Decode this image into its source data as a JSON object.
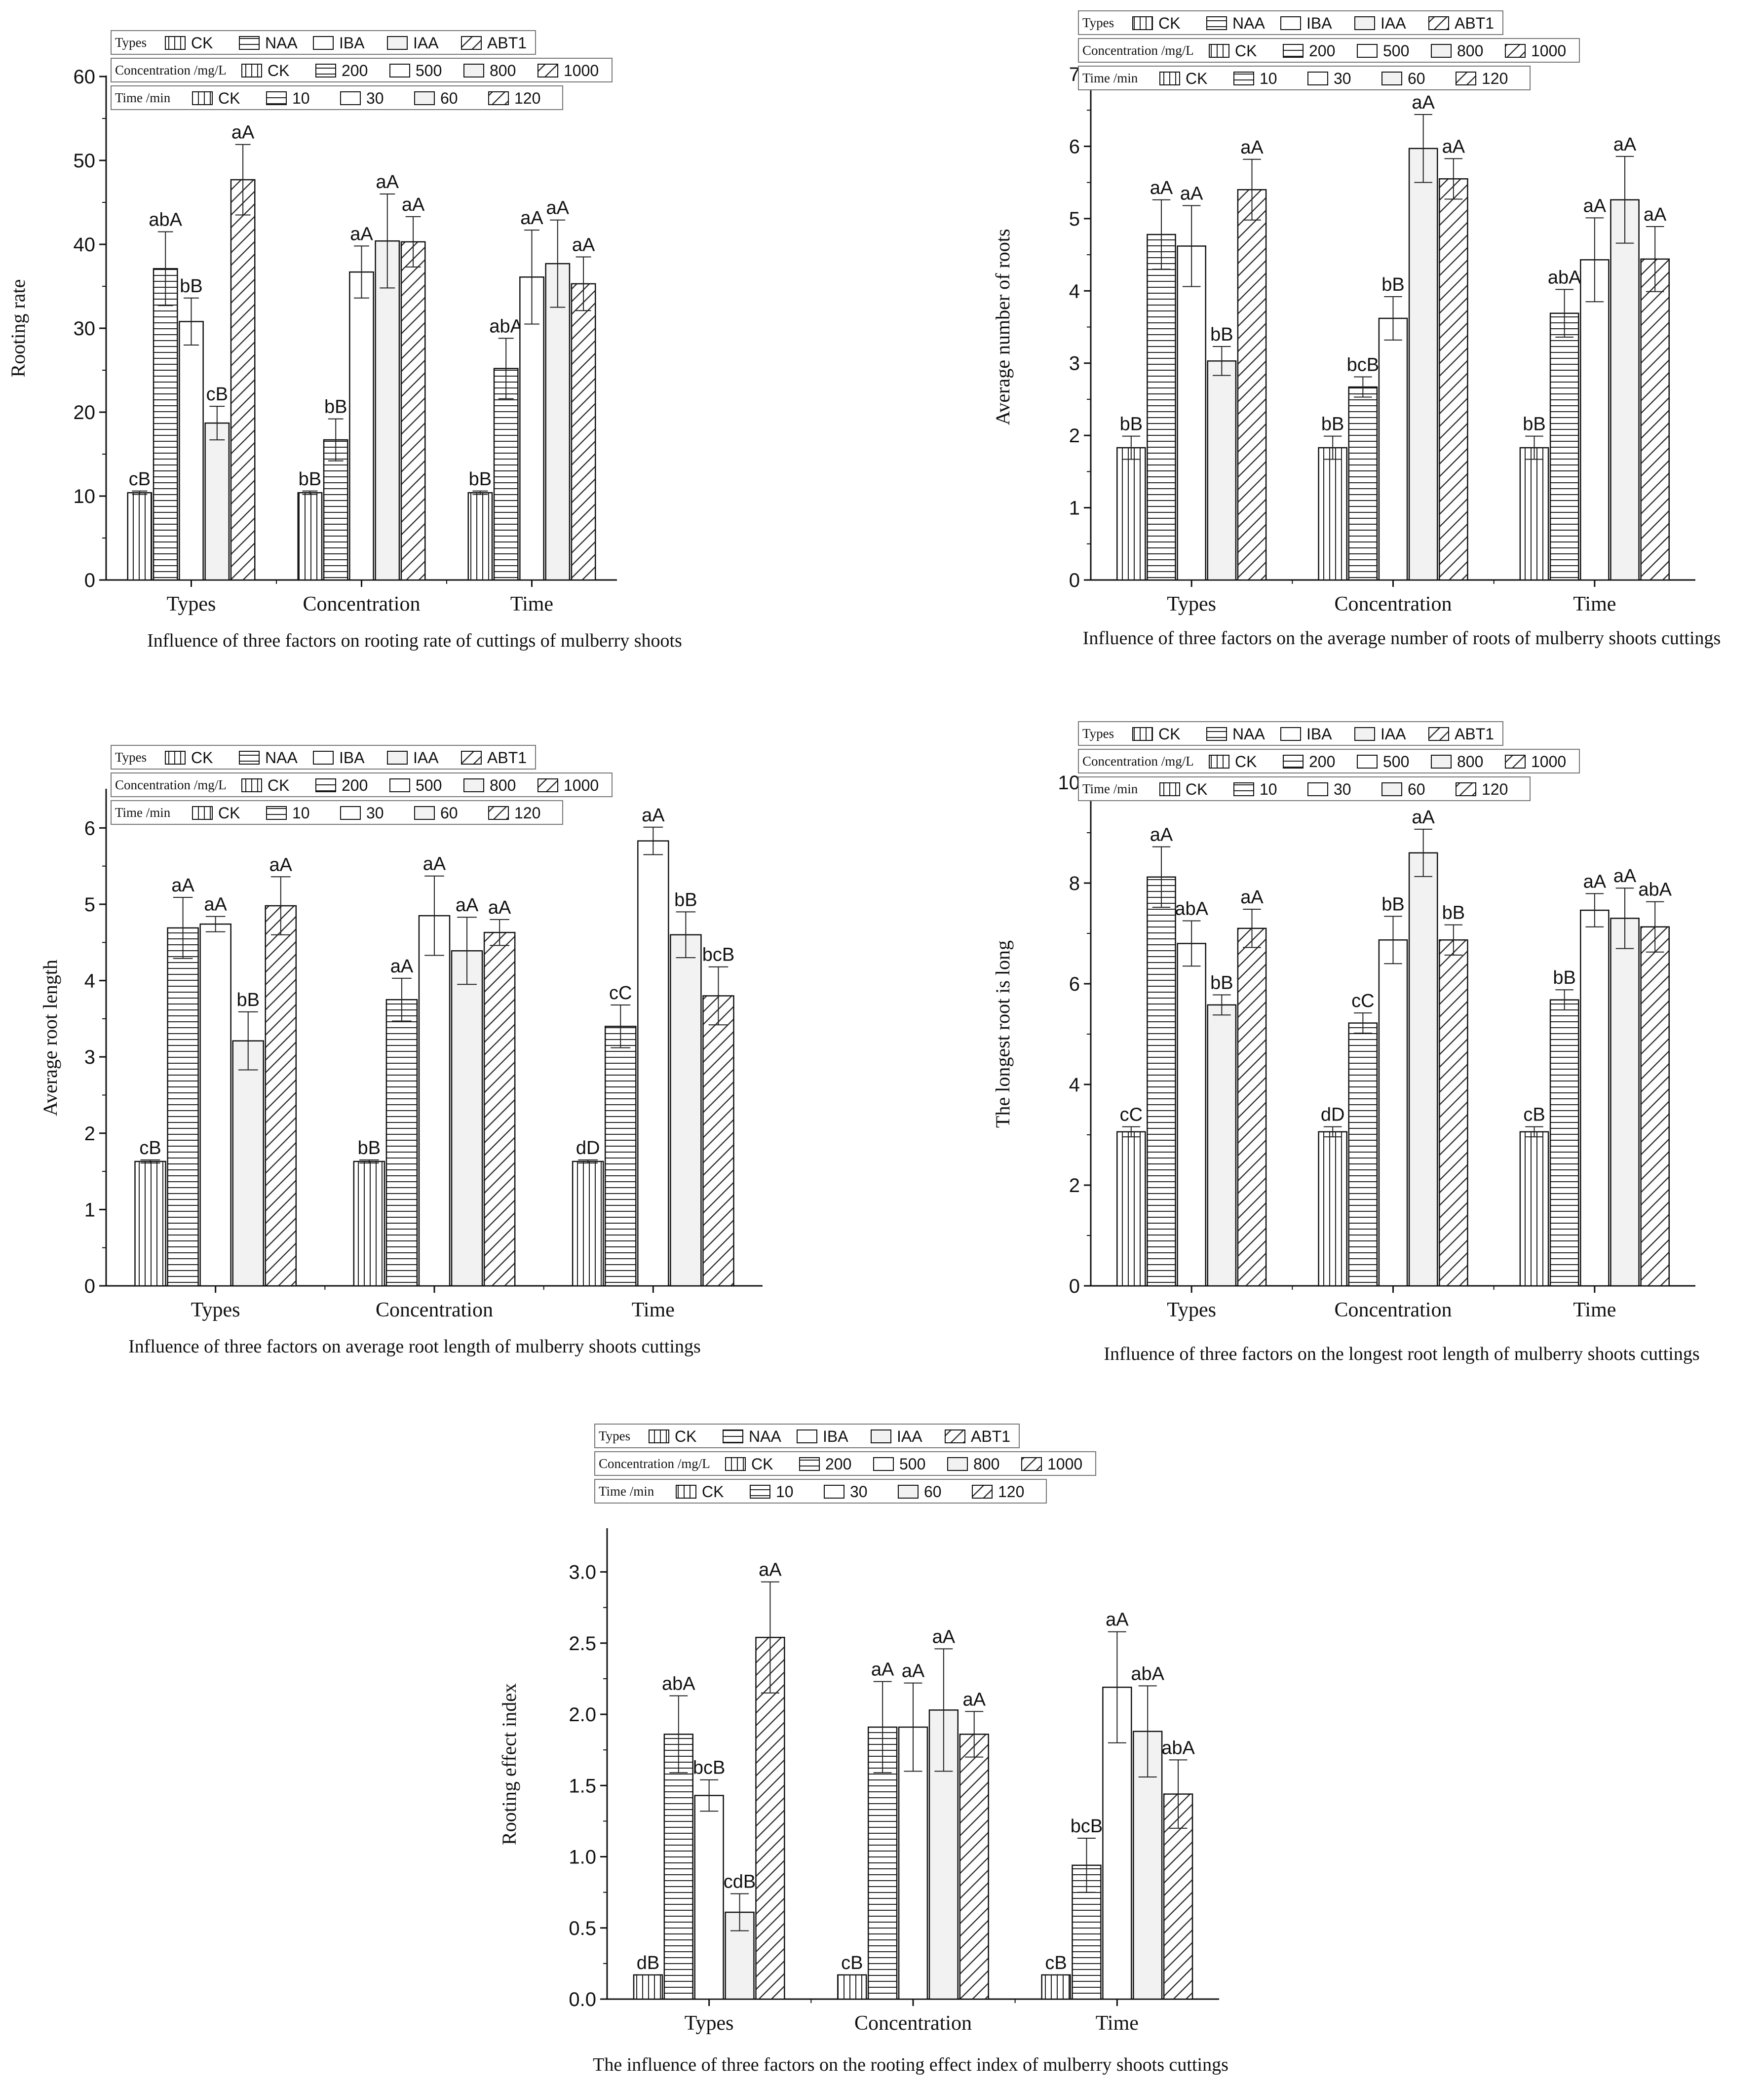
{
  "figure": {
    "legend_rows": [
      {
        "label": "Types",
        "entries": [
          "CK",
          "NAA",
          "IBA",
          "IAA",
          "ABT1"
        ]
      },
      {
        "label": "Concentration /mg/L",
        "entries": [
          "CK",
          "200",
          "500",
          "800",
          "1000"
        ]
      },
      {
        "label": "Time /min",
        "entries": [
          "CK",
          "10",
          "30",
          "60",
          "120"
        ]
      }
    ],
    "patterns": [
      "vertical-lines",
      "horizontal-lines",
      "blank",
      "light-gray",
      "diagonal-hatch"
    ]
  },
  "chart_data": [
    {
      "type": "bar",
      "title": "Influence of three factors on rooting rate of cuttings of mulberry shoots",
      "xlabel": "",
      "ylabel": "Rooting rate",
      "categories": [
        "Types",
        "Concentration",
        "Time"
      ],
      "ylim": [
        0,
        60
      ],
      "yticks": [
        0,
        10,
        20,
        30,
        40,
        50,
        60
      ],
      "tick_labels": [
        "0",
        "10",
        "20",
        "30",
        "40",
        "50",
        "60"
      ],
      "groups": [
        {
          "values": [
            10.4,
            37.1,
            30.8,
            18.7,
            47.7
          ],
          "errors": [
            0.2,
            4.4,
            2.8,
            2.0,
            4.2
          ],
          "labels": [
            "cB",
            "abA",
            "bB",
            "cB",
            "aA"
          ]
        },
        {
          "values": [
            10.4,
            16.7,
            36.7,
            40.4,
            40.3
          ],
          "errors": [
            0.2,
            2.5,
            3.1,
            5.6,
            3.0
          ],
          "labels": [
            "bB",
            "bB",
            "aA",
            "aA",
            "aA"
          ]
        },
        {
          "values": [
            10.4,
            25.2,
            36.1,
            37.7,
            35.3
          ],
          "errors": [
            0.2,
            3.6,
            5.6,
            5.2,
            3.2
          ],
          "labels": [
            "bB",
            "abA",
            "aA",
            "aA",
            "aA"
          ]
        }
      ]
    },
    {
      "type": "bar",
      "title": "Influence of three factors on the average number of roots of mulberry shoots cuttings",
      "xlabel": "",
      "ylabel": "Average number of roots",
      "categories": [
        "Types",
        "Concentration",
        "Time"
      ],
      "ylim": [
        0,
        7
      ],
      "yticks": [
        0,
        1,
        2,
        3,
        4,
        5,
        6,
        7
      ],
      "tick_labels": [
        "0",
        "1",
        "2",
        "3",
        "4",
        "5",
        "6",
        "7"
      ],
      "groups": [
        {
          "values": [
            1.83,
            4.78,
            4.62,
            3.03,
            5.4
          ],
          "errors": [
            0.16,
            0.48,
            0.56,
            0.2,
            0.42
          ],
          "labels": [
            "bB",
            "aA",
            "aA",
            "bB",
            "aA"
          ]
        },
        {
          "values": [
            1.83,
            2.67,
            3.62,
            5.97,
            5.55
          ],
          "errors": [
            0.16,
            0.14,
            0.3,
            0.47,
            0.28
          ],
          "labels": [
            "bB",
            "bcB",
            "bB",
            "aA",
            "aA"
          ]
        },
        {
          "values": [
            1.83,
            3.69,
            4.43,
            5.26,
            4.44
          ],
          "errors": [
            0.16,
            0.33,
            0.58,
            0.6,
            0.45
          ],
          "labels": [
            "bB",
            "abA",
            "aA",
            "aA",
            "aA"
          ]
        }
      ]
    },
    {
      "type": "bar",
      "title": "Influence of three factors on average root length of mulberry shoots cuttings",
      "xlabel": "",
      "ylabel": "Average root length",
      "categories": [
        "Types",
        "Concentration",
        "Time"
      ],
      "ylim": [
        0,
        6.5
      ],
      "yticks": [
        0,
        1,
        2,
        3,
        4,
        5,
        6
      ],
      "tick_labels": [
        "0",
        "1",
        "2",
        "3",
        "4",
        "5",
        "6"
      ],
      "groups": [
        {
          "values": [
            1.63,
            4.69,
            4.74,
            3.21,
            4.98
          ],
          "errors": [
            0.02,
            0.4,
            0.1,
            0.38,
            0.38
          ],
          "labels": [
            "cB",
            "aA",
            "aA",
            "bB",
            "aA"
          ]
        },
        {
          "values": [
            1.63,
            3.75,
            4.85,
            4.39,
            4.63
          ],
          "errors": [
            0.02,
            0.28,
            0.52,
            0.44,
            0.17
          ],
          "labels": [
            "bB",
            "aA",
            "aA",
            "aA",
            "aA"
          ]
        },
        {
          "values": [
            1.63,
            3.4,
            5.83,
            4.6,
            3.8
          ],
          "errors": [
            0.02,
            0.28,
            0.18,
            0.3,
            0.38
          ],
          "labels": [
            "dD",
            "cC",
            "aA",
            "bB",
            "bcB"
          ]
        }
      ]
    },
    {
      "type": "bar",
      "title": "Influence of three factors on the longest root length of mulberry shoots cuttings",
      "xlabel": "",
      "ylabel": "The longest root is long",
      "categories": [
        "Types",
        "Concentration",
        "Time"
      ],
      "ylim": [
        0,
        10
      ],
      "yticks": [
        0,
        2,
        4,
        6,
        8,
        10
      ],
      "tick_labels": [
        "0",
        "2",
        "4",
        "6",
        "8",
        "10"
      ],
      "groups": [
        {
          "values": [
            3.06,
            8.12,
            6.8,
            5.58,
            7.1
          ],
          "errors": [
            0.1,
            0.6,
            0.45,
            0.2,
            0.38
          ],
          "labels": [
            "cC",
            "aA",
            "abA",
            "bB",
            "aA"
          ]
        },
        {
          "values": [
            3.06,
            5.22,
            6.87,
            8.6,
            6.87
          ],
          "errors": [
            0.1,
            0.2,
            0.47,
            0.47,
            0.3
          ],
          "labels": [
            "dD",
            "cC",
            "bB",
            "aA",
            "bB"
          ]
        },
        {
          "values": [
            3.06,
            5.68,
            7.46,
            7.3,
            7.13
          ],
          "errors": [
            0.1,
            0.2,
            0.33,
            0.6,
            0.5
          ],
          "labels": [
            "cB",
            "bB",
            "aA",
            "aA",
            "abA"
          ]
        }
      ]
    },
    {
      "type": "bar",
      "title": "The influence of three factors on the rooting effect index of mulberry shoots cuttings",
      "xlabel": "",
      "ylabel": "Rooting effect index",
      "categories": [
        "Types",
        "Concentration",
        "Time"
      ],
      "ylim": [
        0,
        3.3
      ],
      "yticks": [
        0,
        0.5,
        1.0,
        1.5,
        2.0,
        2.5,
        3.0
      ],
      "tick_labels": [
        "0.0",
        "0.5",
        "1.0",
        "1.5",
        "2.0",
        "2.5",
        "3.0"
      ],
      "groups": [
        {
          "values": [
            0.17,
            1.86,
            1.43,
            0.61,
            2.54
          ],
          "errors": [
            0.0,
            0.27,
            0.11,
            0.13,
            0.39
          ],
          "labels": [
            "dB",
            "abA",
            "bcB",
            "cdB",
            "aA"
          ]
        },
        {
          "values": [
            0.17,
            1.91,
            1.91,
            2.03,
            1.86
          ],
          "errors": [
            0.0,
            0.32,
            0.31,
            0.43,
            0.16
          ],
          "labels": [
            "cB",
            "aA",
            "aA",
            "aA",
            "aA"
          ]
        },
        {
          "values": [
            0.17,
            0.94,
            2.19,
            1.88,
            1.44
          ],
          "errors": [
            0.0,
            0.19,
            0.39,
            0.32,
            0.24
          ],
          "labels": [
            "cB",
            "bcB",
            "aA",
            "abA",
            "abA"
          ]
        }
      ]
    }
  ]
}
